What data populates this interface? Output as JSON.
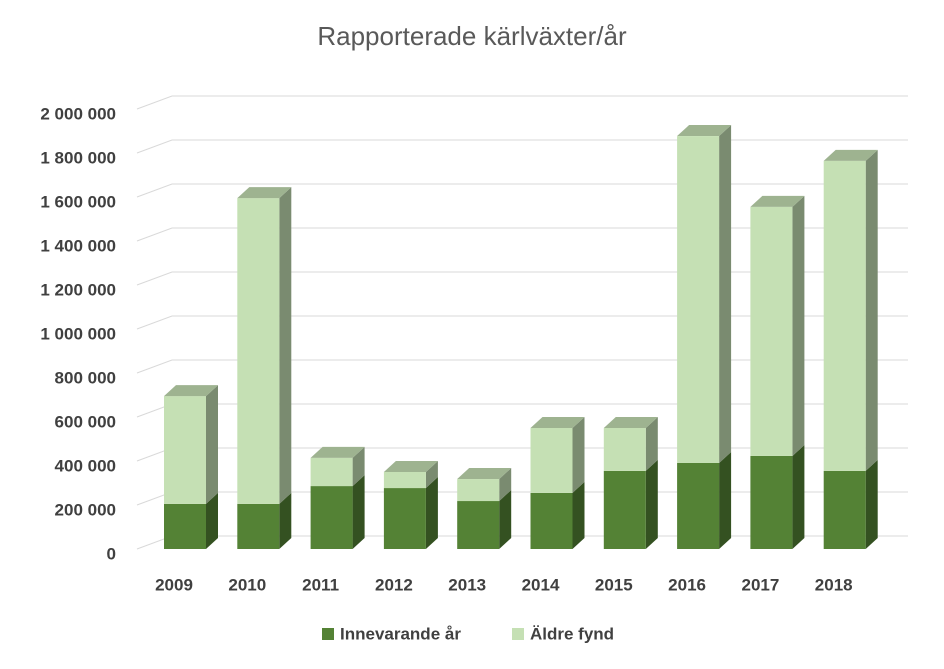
{
  "chart_data": {
    "type": "bar3d_stacked",
    "title": "Rapporterade kärlväxter/år",
    "categories": [
      "2009",
      "2010",
      "2011",
      "2012",
      "2013",
      "2014",
      "2015",
      "2016",
      "2017",
      "2018"
    ],
    "series": [
      {
        "name": "Innevarande år",
        "color": "#548235",
        "values": [
          205000,
          205000,
          286000,
          277000,
          218000,
          255000,
          355000,
          391000,
          423000,
          355000
        ]
      },
      {
        "name": "Äldre fynd",
        "color": "#c5e0b4",
        "values": [
          490000,
          1390000,
          128000,
          73000,
          100000,
          295000,
          195000,
          1486000,
          1132000,
          1409000
        ]
      }
    ],
    "ylim": [
      0,
      2000000
    ],
    "yticks": [
      0,
      {
        "value": 200000,
        "label": "200 000"
      },
      {
        "value": 400000,
        "label": "400 000"
      },
      {
        "value": 600000,
        "label": "600 000"
      },
      {
        "value": 800000,
        "label": "800 000"
      },
      {
        "value": 1000000,
        "label": "1 000 000"
      },
      {
        "value": 1200000,
        "label": "1 200 000"
      },
      {
        "value": 1400000,
        "label": "1 400 000"
      },
      {
        "value": 1600000,
        "label": "1 600 000"
      },
      {
        "value": 1800000,
        "label": "1 800 000"
      },
      {
        "value": 2000000,
        "label": "2 000 000"
      }
    ],
    "grid": true
  }
}
